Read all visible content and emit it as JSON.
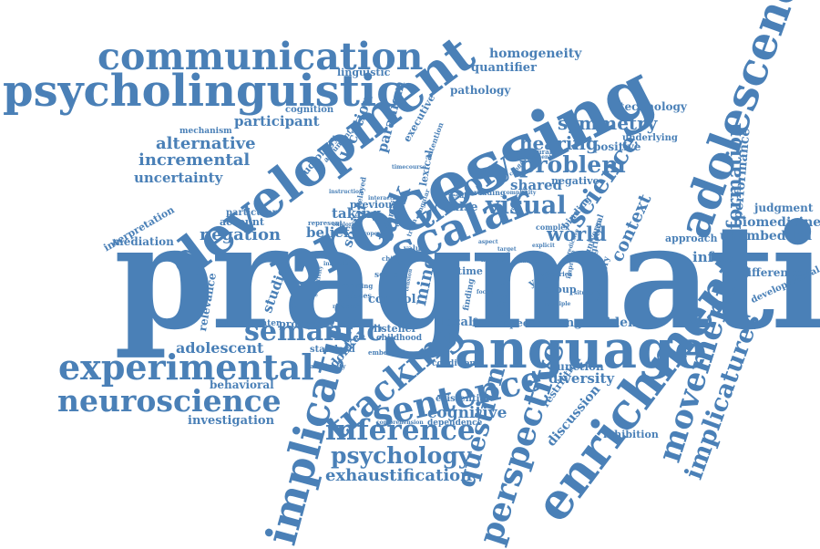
{
  "colors": {
    "primary": "#4a80b7",
    "light": "#6a98c8"
  },
  "words": {
    "pragmatic": "pragmatic",
    "processing": "processing",
    "development": "development",
    "language": "language",
    "communication": "communication",
    "psycholinguistic": "psycholinguistic",
    "adolescence": "adolescence",
    "enrichment": "enrichment",
    "implicature": "implicature",
    "scalar": "scalar",
    "experimental": "experimental",
    "neuroscience": "neuroscience",
    "semantic": "semantic",
    "tracking": "tracking",
    "sentence": "sentence",
    "inference": "inference",
    "psychology": "psychology",
    "perspective": "perspective",
    "movement": "movement",
    "implicatures": "implicatures",
    "information": "information",
    "theory": "theory",
    "problem": "problem",
    "science": "science",
    "visual": "visual",
    "world": "world",
    "context": "context",
    "question": "question",
    "symmetry": "symmetry",
    "hearing": "hearing",
    "alternative": "alternative",
    "incremental": "incremental",
    "uncertainty": "uncertainty",
    "participant": "participant",
    "negation": "negation",
    "belief": "belief",
    "taking": "taking",
    "social": "social",
    "task": "task",
    "mind": "mind",
    "shared": "shared",
    "exhaustification": "exhaustification",
    "homogeneity": "homogeneity",
    "quantifier": "quantifier",
    "pathology": "pathology",
    "paradigm": "paradigm",
    "location": "location",
    "technology": "technology",
    "underlying": "underlying",
    "positive": "positive",
    "performance": "performance",
    "judgment": "judgment",
    "biomedicine": "biomedicine",
    "unembedded": "unembedded",
    "approach": "approach",
    "info": "info",
    "difference": "difference",
    "developmental": "developmental",
    "interpretation": "interpretation",
    "mediation": "mediation",
    "account": "account",
    "particular": "particular",
    "previous": "previous",
    "relevance": "relevance",
    "studies": "studies",
    "adolescent": "adolescent",
    "behavioral": "behavioral",
    "experimenter": "experimenter",
    "processes": "processes",
    "standard": "standard",
    "investigation": "investigation",
    "donkey": "donkey",
    "cognitive": "cognitive",
    "existential": "existential",
    "dependence": "dependence",
    "comprehension": "comprehension",
    "diversity": "diversity",
    "function": "function",
    "discussion": "discussion",
    "restriction": "restriction",
    "inhibition": "inhibition",
    "change": "change",
    "evidence": "evidence",
    "local": "local",
    "factor": "factor",
    "speech": "speech",
    "listener": "listener",
    "childhood": "childhood",
    "control": "control",
    "director": "director",
    "group": "group",
    "inhibitory": "inhibitory",
    "gricean": "gricean",
    "universal": "universal",
    "binding": "binding",
    "mechanism": "mechanism",
    "cognition": "cognition",
    "linguistic": "linguistic",
    "audiology": "audiology",
    "executive": "executive",
    "intention": "intention",
    "argument": "argument",
    "lexical": "lexical",
    "domain": "domain",
    "false": "false",
    "reading": "reading",
    "result": "result",
    "negative": "negative",
    "structural": "structural",
    "experiment": "experiment",
    "complexity": "complexity",
    "complex": "complex",
    "delayed": "delayed",
    "represent": "represent",
    "exploring": "exploring",
    "embedded": "embedded",
    "ambiguity": "ambiguity",
    "condition": "condition",
    "time": "time",
    "year": "year",
    "value": "value",
    "scale": "scale",
    "biases": "biases",
    "priming": "priming",
    "finding": "finding",
    "child": "child",
    "theories": "theories",
    "improve": "improve",
    "situation": "situation",
    "predictive": "predictive",
    "explicit": "explicit",
    "target": "target",
    "focus": "focus",
    "meaning": "meaning",
    "interaction": "interaction",
    "influence": "influence",
    "effect": "effect",
    "singular": "singular",
    "truth": "truth",
    "sensitivity": "sensitivity",
    "timecourse": "timecourse",
    "interval": "interval",
    "tension": "tension",
    "response": "response",
    "conflicting": "conflicting",
    "instruction": "instruction",
    "property": "property",
    "aspect": "aspect",
    "nature": "nature",
    "multiple": "multiple"
  }
}
